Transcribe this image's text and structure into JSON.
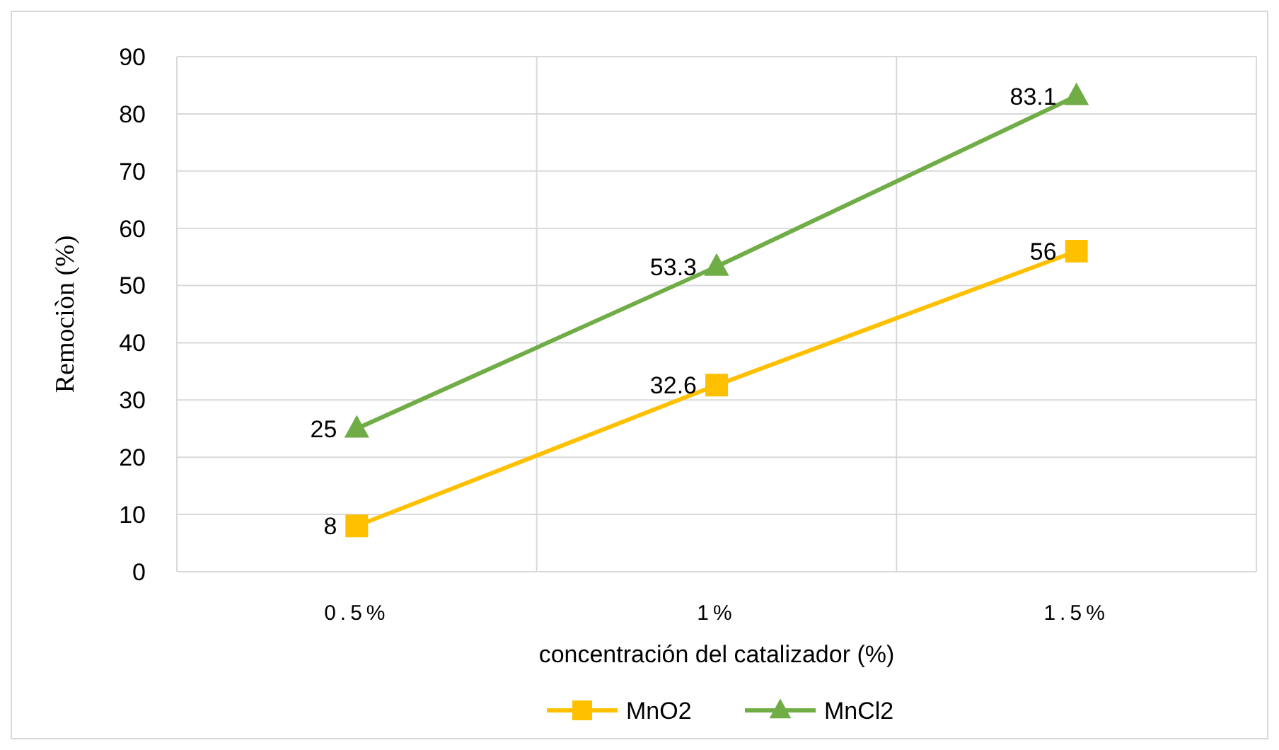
{
  "chart_data": {
    "type": "line",
    "xlabel": "concentración del catalizador (%)",
    "ylabel": "Remociòn (%)",
    "categories": [
      "0.5%",
      "1%",
      "1.5%"
    ],
    "series": [
      {
        "name": "MnO2",
        "color": "#ffc000",
        "values": [
          8,
          32.6,
          56
        ],
        "marker": "square"
      },
      {
        "name": "MnCl2",
        "color": "#70ad47",
        "values": [
          25,
          53.3,
          83.1
        ],
        "marker": "triangle"
      }
    ],
    "ylim": [
      0,
      90
    ],
    "yticks": [
      0,
      10,
      20,
      30,
      40,
      50,
      60,
      70,
      80,
      90
    ],
    "grid": true,
    "legend": "bottom",
    "data_labels": true,
    "line_style": "solid"
  }
}
